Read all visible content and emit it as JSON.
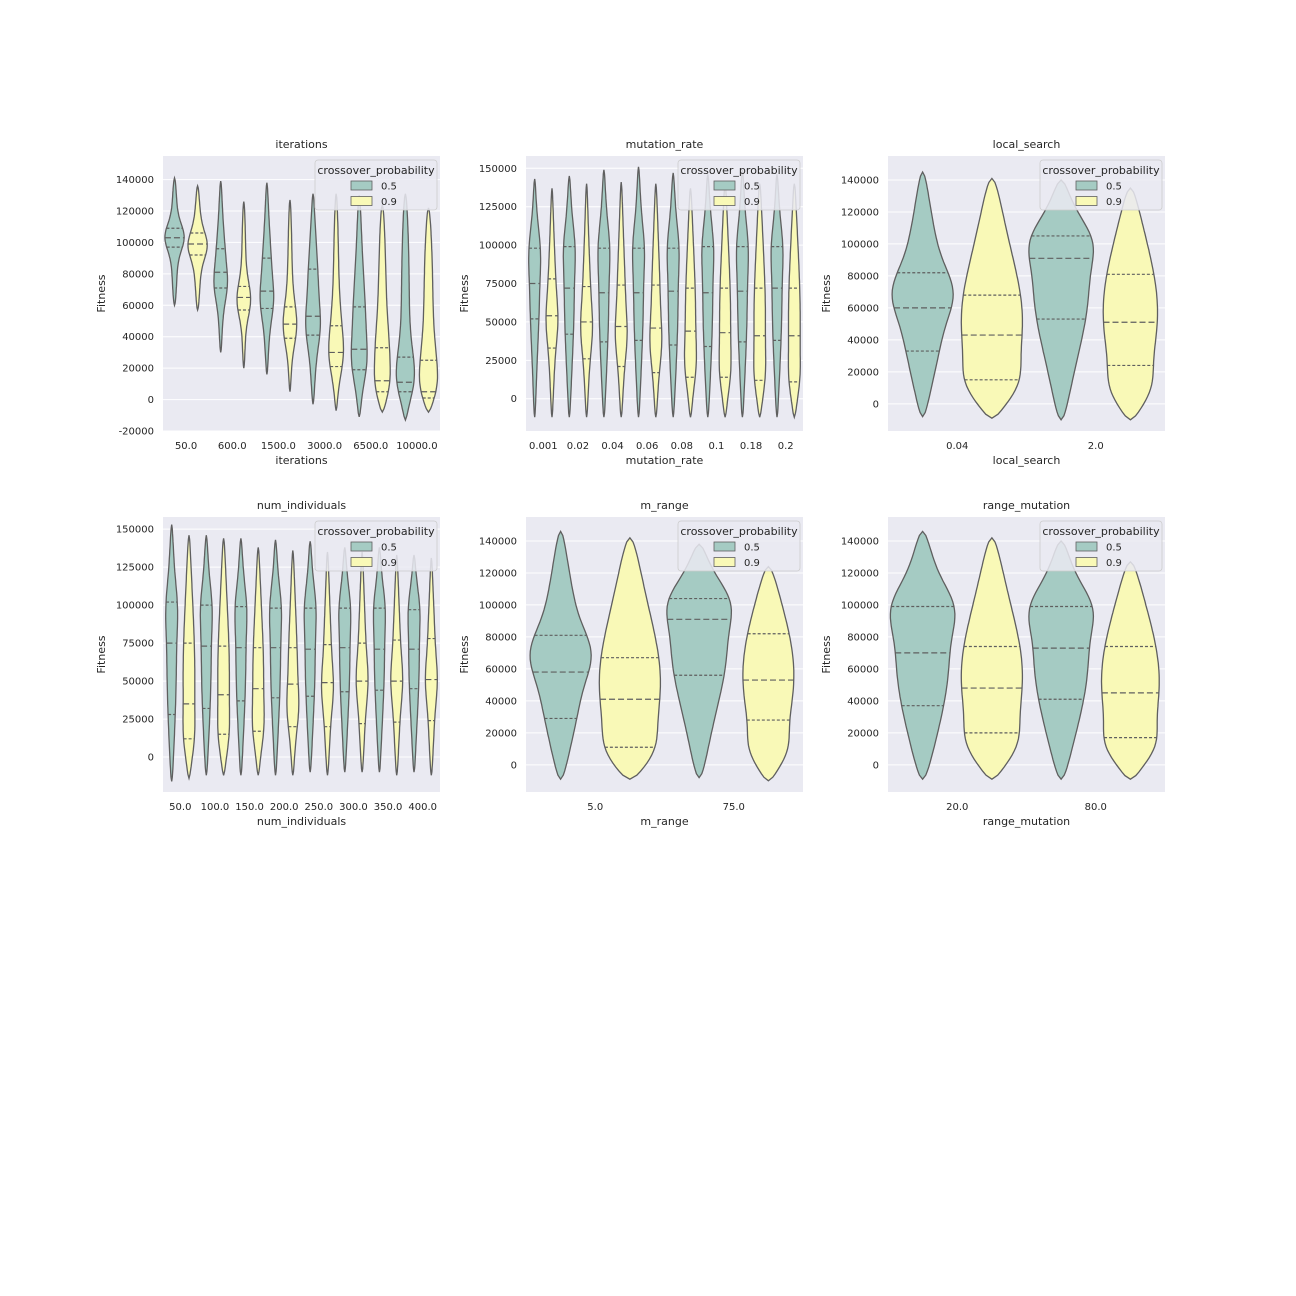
{
  "figure": {
    "background": "#ffffff",
    "axes_bg": "#eaeaf2",
    "grid_color": "#ffffff",
    "edge_color": "#5f5f5f"
  },
  "chart_data": [
    {
      "type": "violin",
      "title": "iterations",
      "xlabel": "iterations",
      "ylabel": "Fitness",
      "grid": true,
      "split_x": false,
      "ylim": [
        -20000,
        155000
      ],
      "yticks": [
        -20000,
        0,
        20000,
        40000,
        60000,
        80000,
        100000,
        120000,
        140000
      ],
      "categories": [
        "50.0",
        "600.0",
        "1500.0",
        "3000.0",
        "6500.0",
        "10000.0"
      ],
      "legend": {
        "title": "crossover_probability",
        "placement": "upper right",
        "entries": [
          "0.5",
          "0.9"
        ]
      },
      "series": [
        {
          "name": "0.5",
          "color": "#a5cbc3",
          "values": [
            {
              "min": 60000,
              "max": 141000,
              "q1": 97000,
              "median": 103000,
              "q3": 109000,
              "peak": 104000,
              "width": 0.85
            },
            {
              "min": 30000,
              "max": 139000,
              "q1": 71000,
              "median": 81000,
              "q3": 96000,
              "peak": 72000,
              "width": 0.6
            },
            {
              "min": 16000,
              "max": 138000,
              "q1": 58000,
              "median": 69000,
              "q3": 90000,
              "peak": 62000,
              "width": 0.6
            },
            {
              "min": -3000,
              "max": 131000,
              "q1": 41000,
              "median": 53000,
              "q3": 83000,
              "peak": 45000,
              "width": 0.65
            },
            {
              "min": -11000,
              "max": 130000,
              "q1": 19000,
              "median": 32000,
              "q3": 59000,
              "peak": 22000,
              "width": 0.7
            },
            {
              "min": -13000,
              "max": 131000,
              "q1": 5000,
              "median": 11000,
              "q3": 27000,
              "peak": 8000,
              "width": 0.8
            }
          ]
        },
        {
          "name": "0.9",
          "color": "#f9f9b7",
          "values": [
            {
              "min": 57000,
              "max": 136000,
              "q1": 92000,
              "median": 99000,
              "q3": 106000,
              "peak": 98000,
              "width": 0.85
            },
            {
              "min": 20000,
              "max": 126000,
              "q1": 57000,
              "median": 65000,
              "q3": 72000,
              "peak": 62000,
              "width": 0.6
            },
            {
              "min": 5000,
              "max": 127000,
              "q1": 39000,
              "median": 48000,
              "q3": 59000,
              "peak": 45000,
              "width": 0.6
            },
            {
              "min": -7000,
              "max": 131000,
              "q1": 21000,
              "median": 30000,
              "q3": 47000,
              "peak": 26000,
              "width": 0.65
            },
            {
              "min": -8000,
              "max": 124000,
              "q1": 5000,
              "median": 12000,
              "q3": 33000,
              "peak": 5000,
              "width": 0.7
            },
            {
              "min": -8000,
              "max": 122000,
              "q1": 1000,
              "median": 5000,
              "q3": 25000,
              "peak": 4000,
              "width": 0.8
            }
          ]
        }
      ]
    },
    {
      "type": "violin",
      "title": "mutation_rate",
      "xlabel": "mutation_rate",
      "ylabel": "Fitness",
      "grid": true,
      "split_x": false,
      "ylim": [
        -21000,
        158000
      ],
      "yticks": [
        0,
        25000,
        50000,
        75000,
        100000,
        125000,
        150000
      ],
      "categories": [
        "0.001",
        "0.02",
        "0.04",
        "0.06",
        "0.08",
        "0.1",
        "0.18",
        "0.2"
      ],
      "legend": {
        "title": "crossover_probability",
        "placement": "upper right",
        "entries": [
          "0.5",
          "0.9"
        ]
      },
      "series": [
        {
          "name": "0.5",
          "color": "#a5cbc3",
          "values": [
            {
              "min": -12000,
              "max": 143000,
              "q1": 52000,
              "median": 75000,
              "q3": 98000,
              "peak": 98000,
              "width": 0.7
            },
            {
              "min": -12000,
              "max": 145000,
              "q1": 42000,
              "median": 72000,
              "q3": 99000,
              "peak": 100000,
              "width": 0.7
            },
            {
              "min": -12000,
              "max": 149000,
              "q1": 37000,
              "median": 69000,
              "q3": 98000,
              "peak": 100000,
              "width": 0.7
            },
            {
              "min": -12000,
              "max": 151000,
              "q1": 38000,
              "median": 69000,
              "q3": 98000,
              "peak": 100000,
              "width": 0.7
            },
            {
              "min": -12000,
              "max": 147000,
              "q1": 35000,
              "median": 70000,
              "q3": 98000,
              "peak": 100000,
              "width": 0.7
            },
            {
              "min": -12000,
              "max": 146000,
              "q1": 34000,
              "median": 69000,
              "q3": 99000,
              "peak": 100000,
              "width": 0.7
            },
            {
              "min": -12000,
              "max": 149000,
              "q1": 37000,
              "median": 70000,
              "q3": 99000,
              "peak": 100000,
              "width": 0.7
            },
            {
              "min": -12000,
              "max": 146000,
              "q1": 38000,
              "median": 72000,
              "q3": 99000,
              "peak": 100000,
              "width": 0.7
            }
          ]
        },
        {
          "name": "0.9",
          "color": "#f9f9b7",
          "values": [
            {
              "min": -12000,
              "max": 137000,
              "q1": 33000,
              "median": 54000,
              "q3": 78000,
              "peak": 50000,
              "width": 0.7
            },
            {
              "min": -12000,
              "max": 140000,
              "q1": 26000,
              "median": 50000,
              "q3": 73000,
              "peak": 45000,
              "width": 0.7
            },
            {
              "min": -12000,
              "max": 141000,
              "q1": 21000,
              "median": 47000,
              "q3": 74000,
              "peak": 40000,
              "width": 0.7
            },
            {
              "min": -12000,
              "max": 140000,
              "q1": 17000,
              "median": 46000,
              "q3": 74000,
              "peak": 35000,
              "width": 0.7
            },
            {
              "min": -12000,
              "max": 137000,
              "q1": 14000,
              "median": 44000,
              "q3": 72000,
              "peak": 20000,
              "width": 0.7
            },
            {
              "min": -12000,
              "max": 140000,
              "q1": 14000,
              "median": 43000,
              "q3": 72000,
              "peak": 15000,
              "width": 0.7
            },
            {
              "min": -12000,
              "max": 140000,
              "q1": 12000,
              "median": 41000,
              "q3": 72000,
              "peak": 12000,
              "width": 0.7
            },
            {
              "min": -12000,
              "max": 140000,
              "q1": 11000,
              "median": 41000,
              "q3": 72000,
              "peak": 10000,
              "width": 0.7
            }
          ]
        }
      ]
    },
    {
      "type": "violin",
      "title": "local_search",
      "xlabel": "local_search",
      "ylabel": "Fitness",
      "grid": true,
      "split_x": false,
      "ylim": [
        -17000,
        155000
      ],
      "yticks": [
        0,
        20000,
        40000,
        60000,
        80000,
        100000,
        120000,
        140000
      ],
      "categories": [
        "0.04",
        "2.0"
      ],
      "legend": {
        "title": "crossover_probability",
        "placement": "upper right",
        "entries": [
          "0.5",
          "0.9"
        ]
      },
      "series": [
        {
          "name": "0.5",
          "color": "#a5cbc3",
          "values": [
            {
              "min": -8000,
              "max": 145000,
              "q1": 33000,
              "median": 60000,
              "q3": 82000,
              "peak": 70000,
              "width": 0.9
            },
            {
              "min": -10000,
              "max": 140000,
              "q1": 53000,
              "median": 91000,
              "q3": 105000,
              "peak": 104000,
              "width": 0.95
            }
          ]
        },
        {
          "name": "0.9",
          "color": "#f9f9b7",
          "values": [
            {
              "min": -9000,
              "max": 141000,
              "q1": 15000,
              "median": 43000,
              "q3": 68000,
              "peak": 8000,
              "width": 0.9
            },
            {
              "min": -10000,
              "max": 135000,
              "q1": 24000,
              "median": 51000,
              "q3": 81000,
              "peak": 5000,
              "width": 0.8
            }
          ]
        }
      ]
    },
    {
      "type": "violin",
      "title": "num_individuals",
      "xlabel": "num_individuals",
      "ylabel": "Fitness",
      "grid": true,
      "split_x": false,
      "ylim": [
        -23000,
        158000
      ],
      "yticks": [
        0,
        25000,
        50000,
        75000,
        100000,
        125000,
        150000
      ],
      "categories": [
        "50.0",
        "100.0",
        "150.0",
        "200.0",
        "250.0",
        "300.0",
        "350.0",
        "400.0"
      ],
      "legend": {
        "title": "crossover_probability",
        "placement": "upper right",
        "entries": [
          "0.5",
          "0.9"
        ]
      },
      "series": [
        {
          "name": "0.5",
          "color": "#a5cbc3",
          "values": [
            {
              "min": -16000,
              "max": 153000,
              "q1": 28000,
              "median": 75000,
              "q3": 102000,
              "peak": 100000,
              "width": 0.7
            },
            {
              "min": -12000,
              "max": 146000,
              "q1": 32000,
              "median": 73000,
              "q3": 100000,
              "peak": 100000,
              "width": 0.7
            },
            {
              "min": -12000,
              "max": 144000,
              "q1": 37000,
              "median": 72000,
              "q3": 99000,
              "peak": 100000,
              "width": 0.7
            },
            {
              "min": -12000,
              "max": 143000,
              "q1": 39000,
              "median": 72000,
              "q3": 98000,
              "peak": 100000,
              "width": 0.7
            },
            {
              "min": -10000,
              "max": 142000,
              "q1": 40000,
              "median": 71000,
              "q3": 98000,
              "peak": 100000,
              "width": 0.7
            },
            {
              "min": -10000,
              "max": 138000,
              "q1": 43000,
              "median": 72000,
              "q3": 98000,
              "peak": 100000,
              "width": 0.7
            },
            {
              "min": -10000,
              "max": 138000,
              "q1": 44000,
              "median": 71000,
              "q3": 98000,
              "peak": 100000,
              "width": 0.7
            },
            {
              "min": -10000,
              "max": 133000,
              "q1": 45000,
              "median": 71000,
              "q3": 97000,
              "peak": 100000,
              "width": 0.7
            }
          ]
        },
        {
          "name": "0.9",
          "color": "#f9f9b7",
          "values": [
            {
              "min": -14000,
              "max": 146000,
              "q1": 12000,
              "median": 35000,
              "q3": 75000,
              "peak": 10000,
              "width": 0.7
            },
            {
              "min": -12000,
              "max": 144000,
              "q1": 15000,
              "median": 41000,
              "q3": 73000,
              "peak": 12000,
              "width": 0.7
            },
            {
              "min": -12000,
              "max": 138000,
              "q1": 17000,
              "median": 45000,
              "q3": 72000,
              "peak": 17000,
              "width": 0.7
            },
            {
              "min": -12000,
              "max": 136000,
              "q1": 20000,
              "median": 48000,
              "q3": 72000,
              "peak": 30000,
              "width": 0.7
            },
            {
              "min": -12000,
              "max": 135000,
              "q1": 20000,
              "median": 49000,
              "q3": 74000,
              "peak": 45000,
              "width": 0.7
            },
            {
              "min": -10000,
              "max": 135000,
              "q1": 22000,
              "median": 50000,
              "q3": 75000,
              "peak": 50000,
              "width": 0.7
            },
            {
              "min": -12000,
              "max": 133000,
              "q1": 23000,
              "median": 50000,
              "q3": 77000,
              "peak": 50000,
              "width": 0.7
            },
            {
              "min": -12000,
              "max": 131000,
              "q1": 24000,
              "median": 51000,
              "q3": 78000,
              "peak": 50000,
              "width": 0.7
            }
          ]
        }
      ]
    },
    {
      "type": "violin",
      "title": "m_range",
      "xlabel": "m_range",
      "ylabel": "Fitness",
      "grid": true,
      "split_x": false,
      "ylim": [
        -17000,
        155000
      ],
      "yticks": [
        0,
        20000,
        40000,
        60000,
        80000,
        100000,
        120000,
        140000
      ],
      "categories": [
        "5.0",
        "75.0"
      ],
      "legend": {
        "title": "crossover_probability",
        "placement": "upper right",
        "entries": [
          "0.5",
          "0.9"
        ]
      },
      "series": [
        {
          "name": "0.5",
          "color": "#a5cbc3",
          "values": [
            {
              "min": -9000,
              "max": 146000,
              "q1": 29000,
              "median": 58000,
              "q3": 81000,
              "peak": 70000,
              "width": 0.9
            },
            {
              "min": -8000,
              "max": 138000,
              "q1": 56000,
              "median": 91000,
              "q3": 104000,
              "peak": 104000,
              "width": 0.95
            }
          ]
        },
        {
          "name": "0.9",
          "color": "#f9f9b7",
          "values": [
            {
              "min": -9000,
              "max": 142000,
              "q1": 11000,
              "median": 41000,
              "q3": 67000,
              "peak": 4000,
              "width": 0.9
            },
            {
              "min": -10000,
              "max": 124000,
              "q1": 28000,
              "median": 53000,
              "q3": 82000,
              "peak": 5000,
              "width": 0.75
            }
          ]
        }
      ]
    },
    {
      "type": "violin",
      "title": "range_mutation",
      "xlabel": "range_mutation",
      "ylabel": "Fitness",
      "grid": true,
      "split_x": false,
      "ylim": [
        -17000,
        155000
      ],
      "yticks": [
        0,
        20000,
        40000,
        60000,
        80000,
        100000,
        120000,
        140000
      ],
      "categories": [
        "20.0",
        "80.0"
      ],
      "legend": {
        "title": "crossover_probability",
        "placement": "upper right",
        "entries": [
          "0.5",
          "0.9"
        ]
      },
      "series": [
        {
          "name": "0.5",
          "color": "#a5cbc3",
          "values": [
            {
              "min": -9000,
              "max": 146000,
              "q1": 37000,
              "median": 70000,
              "q3": 99000,
              "peak": 100000,
              "width": 0.95
            },
            {
              "min": -9000,
              "max": 140000,
              "q1": 41000,
              "median": 73000,
              "q3": 99000,
              "peak": 100000,
              "width": 0.95
            }
          ]
        },
        {
          "name": "0.9",
          "color": "#f9f9b7",
          "values": [
            {
              "min": -9000,
              "max": 142000,
              "q1": 20000,
              "median": 48000,
              "q3": 74000,
              "peak": 8000,
              "width": 0.9
            },
            {
              "min": -9000,
              "max": 127000,
              "q1": 17000,
              "median": 45000,
              "q3": 74000,
              "peak": 8000,
              "width": 0.85
            }
          ]
        }
      ]
    }
  ]
}
